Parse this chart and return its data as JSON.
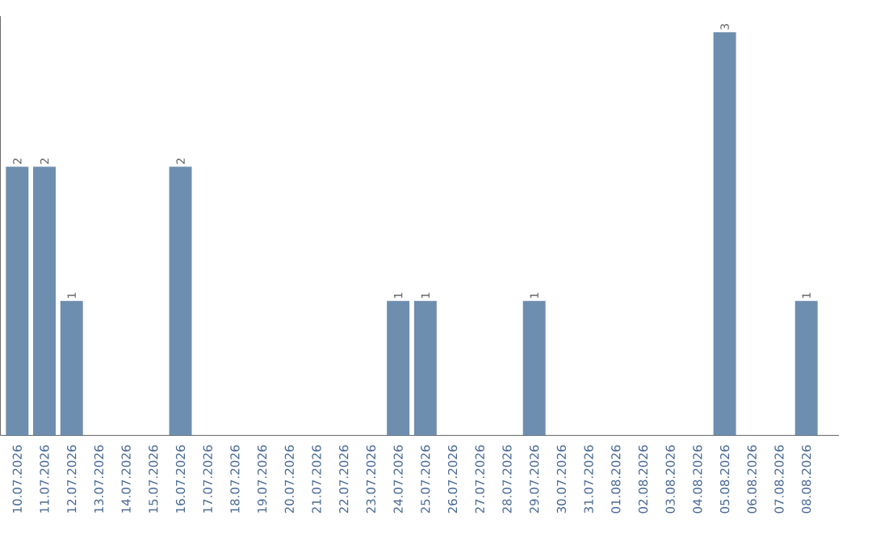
{
  "chart_data": {
    "type": "bar",
    "color": "#6d8eae",
    "categories": [
      "10.07.2026",
      "11.07.2026",
      "12.07.2026",
      "13.07.2026",
      "14.07.2026",
      "15.07.2026",
      "16.07.2026",
      "17.07.2026",
      "18.07.2026",
      "19.07.2026",
      "20.07.2026",
      "21.07.2026",
      "22.07.2026",
      "23.07.2026",
      "24.07.2026",
      "25.07.2026",
      "26.07.2026",
      "27.07.2026",
      "28.07.2026",
      "29.07.2026",
      "30.07.2026",
      "31.07.2026",
      "01.08.2026",
      "02.08.2026",
      "03.08.2026",
      "04.08.2026",
      "05.08.2026",
      "06.08.2026",
      "07.08.2026",
      "08.08.2026"
    ],
    "values": [
      2,
      2,
      1,
      0,
      0,
      0,
      2,
      0,
      0,
      0,
      0,
      0,
      0,
      0,
      1,
      1,
      0,
      0,
      0,
      1,
      0,
      0,
      0,
      0,
      0,
      0,
      3,
      0,
      0,
      1
    ],
    "value_labels": [
      "2",
      "2",
      "1",
      null,
      null,
      null,
      "2",
      null,
      null,
      null,
      null,
      null,
      null,
      null,
      "1",
      "1",
      null,
      null,
      null,
      "1",
      null,
      null,
      null,
      null,
      null,
      null,
      "3",
      null,
      null,
      "1"
    ],
    "data_labels": false
  }
}
